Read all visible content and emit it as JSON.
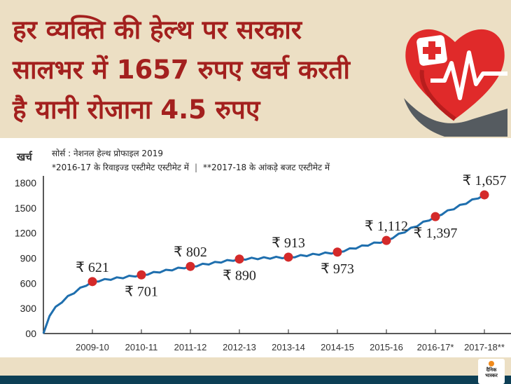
{
  "header": {
    "title_lines": [
      "हर व्यक्ति की हेल्थ पर सरकार",
      "सालभर में 1657 रुपए खर्च करती",
      "है यानी रोजाना 4.5 रुपए"
    ]
  },
  "notes": {
    "source": "सोर्स : नेशनल हेल्थ प्रोफाइल 2019",
    "note1": "*2016-17 के रिवाइज्ड एस्टीमेट एस्टीमेट में",
    "separator": "|",
    "note2": "**2017-18 के आंकड़े बजट एस्टीमेट में"
  },
  "logo": {
    "line1": "दैनिक",
    "line2": "भास्कर"
  },
  "colors": {
    "title": "#a3201e",
    "line": "#1f6fae",
    "point": "#d42a2a",
    "background": "#ecdfc4",
    "bar": "#0d3f55"
  },
  "chart_data": {
    "type": "line",
    "ylabel": "खर्च",
    "ylim": [
      0,
      1800
    ],
    "yticks": [
      0,
      300,
      600,
      900,
      1200,
      1500,
      1800
    ],
    "ytick_labels": [
      "00",
      "300",
      "600",
      "900",
      "1200",
      "1500",
      "1800"
    ],
    "categories": [
      "2009-10",
      "2010-11",
      "2011-12",
      "2012-13",
      "2013-14",
      "2014-15",
      "2015-16",
      "2016-17*",
      "2017-18**"
    ],
    "values": [
      621,
      701,
      802,
      890,
      913,
      973,
      1112,
      1397,
      1657
    ],
    "data_labels": [
      "₹ 621",
      "₹ 701",
      "₹ 802",
      "₹ 890",
      "₹ 913",
      "₹ 973",
      "₹ 1,112",
      "₹ 1,397",
      "₹ 1,657"
    ],
    "label_positions": [
      "above",
      "below",
      "above",
      "below",
      "above",
      "below",
      "above",
      "below",
      "above"
    ],
    "grid": false
  }
}
